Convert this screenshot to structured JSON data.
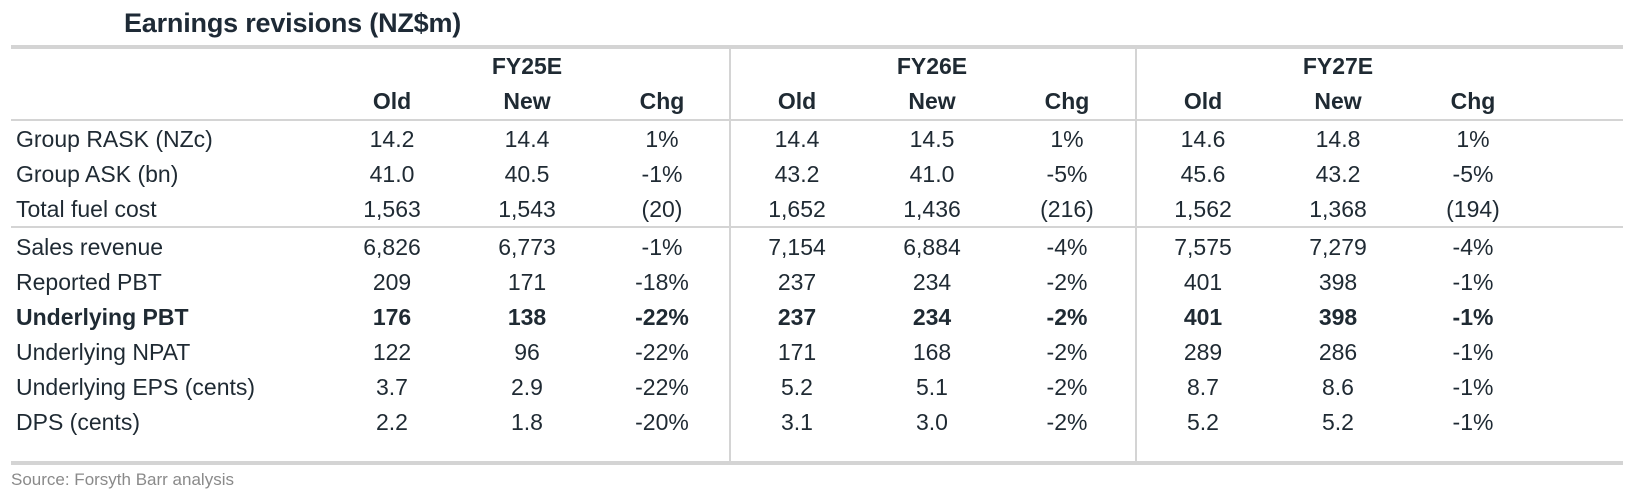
{
  "title": "Earnings revisions (NZ$m)",
  "periods": [
    "FY25E",
    "FY26E",
    "FY27E"
  ],
  "subheaders": [
    "Old",
    "New",
    "Chg"
  ],
  "rows": [
    {
      "label": "Group RASK (NZc)",
      "bold": false,
      "values": [
        "14.2",
        "14.4",
        "1%",
        "14.4",
        "14.5",
        "1%",
        "14.6",
        "14.8",
        "1%"
      ]
    },
    {
      "label": "Group ASK (bn)",
      "bold": false,
      "values": [
        "41.0",
        "40.5",
        "-1%",
        "43.2",
        "41.0",
        "-5%",
        "45.6",
        "43.2",
        "-5%"
      ]
    },
    {
      "label": "Total fuel cost",
      "bold": false,
      "values": [
        "1,563",
        "1,543",
        "(20)",
        "1,652",
        "1,436",
        "(216)",
        "1,562",
        "1,368",
        "(194)"
      ]
    },
    {
      "label": "Sales revenue",
      "bold": false,
      "values": [
        "6,826",
        "6,773",
        "-1%",
        "7,154",
        "6,884",
        "-4%",
        "7,575",
        "7,279",
        "-4%"
      ]
    },
    {
      "label": "Reported PBT",
      "bold": false,
      "values": [
        "209",
        "171",
        "-18%",
        "237",
        "234",
        "-2%",
        "401",
        "398",
        "-1%"
      ]
    },
    {
      "label": "Underlying PBT",
      "bold": true,
      "values": [
        "176",
        "138",
        "-22%",
        "237",
        "234",
        "-2%",
        "401",
        "398",
        "-1%"
      ]
    },
    {
      "label": "Underlying NPAT",
      "bold": false,
      "values": [
        "122",
        "96",
        "-22%",
        "171",
        "168",
        "-2%",
        "289",
        "286",
        "-1%"
      ]
    },
    {
      "label": "Underlying EPS (cents)",
      "bold": false,
      "values": [
        "3.7",
        "2.9",
        "-22%",
        "5.2",
        "5.1",
        "-2%",
        "8.7",
        "8.6",
        "-1%"
      ]
    },
    {
      "label": "DPS (cents)",
      "bold": false,
      "values": [
        "2.2",
        "1.8",
        "-20%",
        "3.1",
        "3.0",
        "-2%",
        "5.2",
        "5.2",
        "-1%"
      ]
    }
  ],
  "source": "Source: Forsyth Barr analysis"
}
